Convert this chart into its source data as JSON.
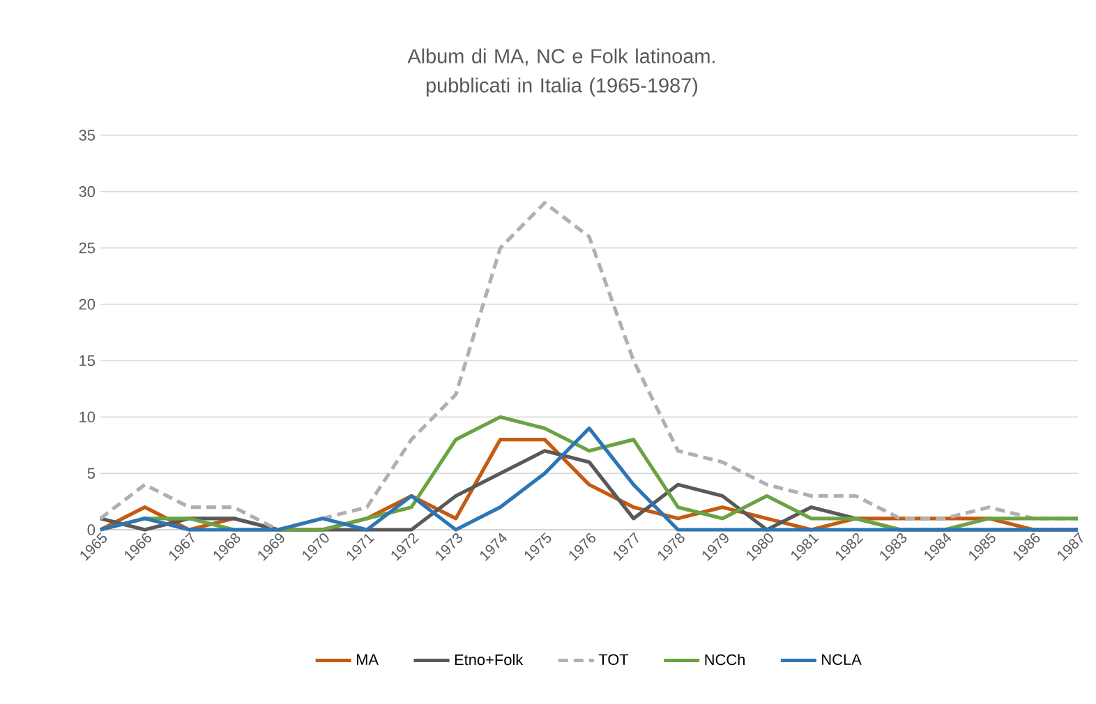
{
  "chart_data": {
    "type": "line",
    "title": "Album di MA, NC e Folk latinoam. pubblicati in Italia (1965-1987)",
    "categories": [
      "1965",
      "1966",
      "1967",
      "1968",
      "1969",
      "1970",
      "1971",
      "1972",
      "1973",
      "1974",
      "1975",
      "1976",
      "1977",
      "1978",
      "1979",
      "1980",
      "1981",
      "1982",
      "1983",
      "1984",
      "1985",
      "1986",
      "1987"
    ],
    "series": [
      {
        "name": "MA",
        "color": "#c55a11",
        "values": [
          0,
          2,
          0,
          1,
          0,
          0,
          1,
          3,
          1,
          8,
          8,
          4,
          2,
          1,
          2,
          1,
          0,
          1,
          1,
          1,
          1,
          0,
          0
        ]
      },
      {
        "name": "Etno+Folk",
        "color": "#595959",
        "values": [
          1,
          0,
          1,
          1,
          0,
          0,
          0,
          0,
          3,
          5,
          7,
          6,
          1,
          4,
          3,
          0,
          2,
          1,
          0,
          0,
          0,
          0,
          0
        ]
      },
      {
        "name": "TOT",
        "color": "#b0b0b0",
        "line_style": "dashed",
        "values": [
          1,
          4,
          2,
          2,
          0,
          1,
          2,
          8,
          12,
          25,
          29,
          26,
          15,
          7,
          6,
          4,
          3,
          3,
          1,
          1,
          2,
          1,
          1
        ]
      },
      {
        "name": "NCCh",
        "color": "#6aa343",
        "values": [
          0,
          1,
          1,
          0,
          0,
          0,
          1,
          2,
          8,
          10,
          9,
          7,
          8,
          2,
          1,
          3,
          1,
          1,
          0,
          0,
          1,
          1,
          1
        ]
      },
      {
        "name": "NCLA",
        "color": "#2e75b6",
        "values": [
          0,
          1,
          0,
          0,
          0,
          1,
          0,
          3,
          0,
          2,
          5,
          9,
          4,
          0,
          0,
          0,
          0,
          0,
          0,
          0,
          0,
          0,
          0
        ]
      }
    ],
    "ylim": [
      0,
      35
    ],
    "yticks": [
      0,
      5,
      10,
      15,
      20,
      25,
      30,
      35
    ],
    "grid": "y",
    "legend": "bottom"
  }
}
